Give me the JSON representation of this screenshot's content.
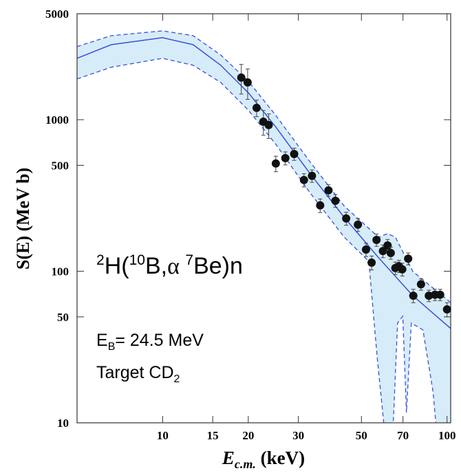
{
  "chart_data": {
    "type": "scatter",
    "y_label": "S(E) (MeV b)",
    "x_label": [
      "E",
      "c.m.",
      " (keV)"
    ],
    "reaction_label": [
      "2",
      "H(",
      "10",
      "B,",
      "α ",
      "7",
      "Be)n"
    ],
    "energy_label": [
      "E",
      "B",
      "= 24.5 MeV"
    ],
    "target_label": [
      "Target CD",
      "2"
    ],
    "log_x": true,
    "log_y": true,
    "xlim": [
      5,
      103
    ],
    "ylim": [
      10,
      5000
    ],
    "xticks": [
      10,
      15,
      20,
      30,
      50,
      70,
      100
    ],
    "yticks": [
      10,
      50,
      100,
      500,
      1000,
      5000
    ],
    "band_color": "#d6ecf8",
    "line_color": "#3a4fd8",
    "point_color": "#111111",
    "curve": {
      "x": [
        5,
        6.59,
        10,
        12.8,
        16.0,
        20.0,
        25.0,
        32.9,
        43.5,
        57.4,
        75.8,
        103
      ],
      "values": [
        2541,
        3126,
        3475,
        3126,
        2286,
        1507,
        894,
        443,
        227,
        123,
        69,
        41.9
      ]
    },
    "band_upper": {
      "x": [
        5,
        6.59,
        10,
        12.8,
        16.0,
        20.0,
        25.0,
        32.9,
        43.5,
        57.4,
        61.8,
        65.8,
        75.8,
        103
      ],
      "values": [
        3034,
        3584,
        3853,
        3584,
        2673,
        1799,
        1067,
        530,
        269,
        168,
        177,
        168,
        99.6,
        62.2
      ]
    },
    "band_lower": {
      "x": [
        5,
        6.59,
        10,
        12.8,
        16.0,
        20.0,
        25.0,
        32.9,
        43.5,
        53.1,
        56.8,
        59.9,
        61.3,
        64.4,
        67.0,
        69.9,
        72.0,
        74.9,
        82.3,
        89.3,
        92.3,
        103
      ],
      "values": [
        1857,
        2218,
        2541,
        2286,
        1762,
        1159,
        689,
        331,
        168,
        116,
        27,
        10,
        8,
        8,
        45.5,
        50.5,
        11.7,
        45.5,
        41,
        16,
        8,
        8
      ]
    },
    "points": {
      "x": [
        18.9,
        19.9,
        21.4,
        22.6,
        23.6,
        25.0,
        27.0,
        29.0,
        31.4,
        33.5,
        35.8,
        38.3,
        40.5,
        44.2,
        48.6,
        51.9,
        54.3,
        56.5,
        59.5,
        61.8,
        63.4,
        65.8,
        67.8,
        69.6,
        73.0,
        76.1,
        81.0,
        86.3,
        90.7,
        94.6,
        100
      ],
      "values": [
        1896,
        1762,
        1197,
        970,
        922,
        514,
        558,
        594,
        400,
        426,
        272,
        342,
        292,
        223,
        203,
        139,
        114,
        161,
        136,
        148,
        132,
        105,
        108,
        103,
        121,
        69,
        82,
        69,
        70,
        70,
        56
      ],
      "errors": [
        420,
        400,
        150,
        180,
        170,
        60,
        55,
        55,
        40,
        40,
        28,
        30,
        28,
        22,
        20,
        14,
        12,
        15,
        13,
        14,
        12,
        10,
        10,
        10,
        11,
        7,
        7,
        6,
        6,
        6,
        6
      ]
    }
  }
}
